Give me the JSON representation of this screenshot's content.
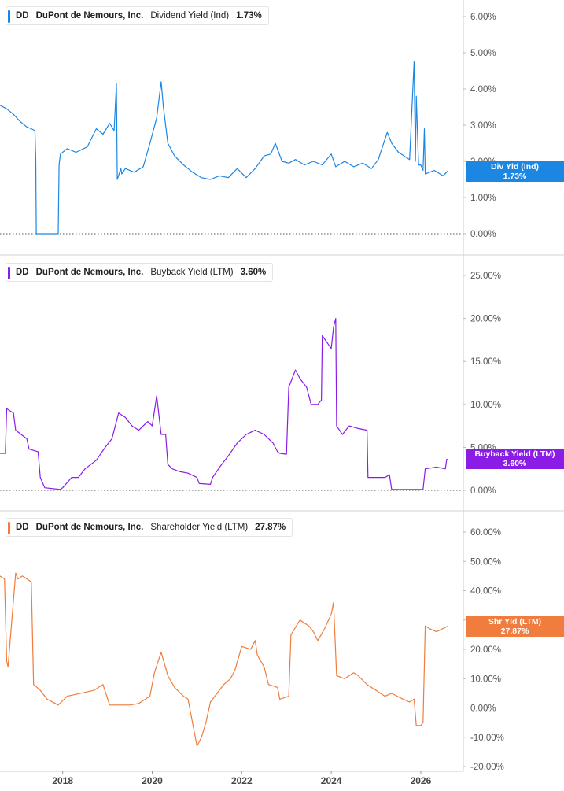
{
  "colors": {
    "dividend": "#1c86e3",
    "buyback": "#8a1ce6",
    "shareholder": "#f07c3d",
    "grid": "#dddddd",
    "axis_text": "#555555"
  },
  "x_axis": {
    "ticks": [
      "2018",
      "2020",
      "2022",
      "2024",
      "2026"
    ],
    "range": [
      2016.6,
      2026.95
    ]
  },
  "chart_data": [
    {
      "type": "line",
      "ticker": "DD",
      "company": "DuPont de Nemours, Inc.",
      "metric": "Dividend Yield (Ind)",
      "current": "1.73%",
      "tag_label": "Div Yld (Ind)",
      "tag_value": "1.73%",
      "yticks": [
        "0.00%",
        "1.00%",
        "2.00%",
        "3.00%",
        "4.00%",
        "5.00%",
        "6.00%"
      ],
      "ylim": [
        0,
        6
      ],
      "x": [
        2016.6,
        2016.75,
        2016.9,
        2017.05,
        2017.2,
        2017.3,
        2017.38,
        2017.4,
        2017.41,
        2017.9,
        2017.92,
        2017.95,
        2018.1,
        2018.3,
        2018.55,
        2018.75,
        2018.9,
        2019.05,
        2019.15,
        2019.2,
        2019.22,
        2019.3,
        2019.32,
        2019.4,
        2019.6,
        2019.8,
        2019.95,
        2020.1,
        2020.2,
        2020.25,
        2020.35,
        2020.5,
        2020.7,
        2020.9,
        2021.1,
        2021.3,
        2021.5,
        2021.7,
        2021.9,
        2022.1,
        2022.3,
        2022.5,
        2022.65,
        2022.75,
        2022.9,
        2023.05,
        2023.2,
        2023.4,
        2023.6,
        2023.8,
        2024.0,
        2024.1,
        2024.3,
        2024.5,
        2024.7,
        2024.9,
        2025.05,
        2025.25,
        2025.35,
        2025.5,
        2025.75,
        2025.85,
        2025.88,
        2025.9,
        2025.95,
        2026.0,
        2026.05,
        2026.08,
        2026.1,
        2026.3,
        2026.5,
        2026.6
      ],
      "values": [
        3.55,
        3.45,
        3.3,
        3.1,
        2.95,
        2.9,
        2.85,
        2.0,
        0.0,
        0.0,
        1.9,
        2.2,
        2.35,
        2.25,
        2.4,
        2.9,
        2.75,
        3.05,
        2.85,
        4.15,
        1.5,
        1.8,
        1.65,
        1.8,
        1.7,
        1.85,
        2.5,
        3.2,
        4.2,
        3.5,
        2.5,
        2.15,
        1.9,
        1.7,
        1.55,
        1.5,
        1.6,
        1.55,
        1.8,
        1.55,
        1.8,
        2.15,
        2.2,
        2.5,
        2.0,
        1.95,
        2.05,
        1.9,
        2.0,
        1.9,
        2.2,
        1.85,
        2.0,
        1.85,
        1.95,
        1.8,
        2.05,
        2.8,
        2.5,
        2.25,
        2.05,
        4.75,
        2.0,
        3.8,
        1.9,
        1.9,
        1.75,
        2.9,
        1.65,
        1.75,
        1.6,
        1.73
      ]
    },
    {
      "type": "line",
      "ticker": "DD",
      "company": "DuPont de Nemours, Inc.",
      "metric": "Buyback Yield (LTM)",
      "current": "3.60%",
      "tag_label": "Buyback Yield (LTM)",
      "tag_value": "3.60%",
      "yticks": [
        "0.00%",
        "5.00%",
        "10.00%",
        "15.00%",
        "20.00%",
        "25.00%"
      ],
      "ylim": [
        0,
        25
      ],
      "x": [
        2016.6,
        2016.72,
        2016.75,
        2016.9,
        2016.95,
        2017.2,
        2017.25,
        2017.45,
        2017.5,
        2017.6,
        2017.95,
        2018.0,
        2018.2,
        2018.35,
        2018.5,
        2018.75,
        2018.95,
        2019.1,
        2019.25,
        2019.4,
        2019.55,
        2019.7,
        2019.9,
        2020.0,
        2020.1,
        2020.2,
        2020.3,
        2020.35,
        2020.45,
        2020.6,
        2020.8,
        2021.0,
        2021.05,
        2021.3,
        2021.35,
        2021.55,
        2021.7,
        2021.9,
        2022.1,
        2022.3,
        2022.5,
        2022.7,
        2022.8,
        2022.85,
        2023.0,
        2023.05,
        2023.2,
        2023.3,
        2023.45,
        2023.55,
        2023.7,
        2023.78,
        2023.8,
        2024.0,
        2024.05,
        2024.1,
        2024.12,
        2024.25,
        2024.4,
        2024.6,
        2024.8,
        2024.82,
        2025.0,
        2025.2,
        2025.3,
        2025.35,
        2025.6,
        2025.8,
        2026.05,
        2026.1,
        2026.35,
        2026.55,
        2026.58,
        2026.6
      ],
      "values": [
        4.3,
        4.3,
        9.5,
        9.0,
        7.0,
        6.0,
        4.8,
        4.5,
        1.5,
        0.3,
        0.1,
        0.3,
        1.5,
        1.5,
        2.5,
        3.5,
        5.0,
        6.0,
        9.0,
        8.5,
        7.5,
        7.0,
        8.0,
        7.5,
        11.0,
        6.5,
        6.5,
        3.0,
        2.5,
        2.2,
        2.0,
        1.5,
        0.8,
        0.7,
        1.5,
        3.0,
        4.0,
        5.5,
        6.5,
        7.0,
        6.5,
        5.5,
        4.5,
        4.3,
        4.2,
        12.0,
        14.0,
        13.0,
        12.0,
        10.0,
        10.0,
        10.5,
        18.0,
        16.5,
        19.0,
        20.0,
        7.5,
        6.5,
        7.5,
        7.2,
        7.0,
        1.5,
        1.5,
        1.5,
        1.8,
        0.1,
        0.1,
        0.1,
        0.1,
        2.5,
        2.7,
        2.5,
        3.6,
        3.6
      ]
    },
    {
      "type": "line",
      "ticker": "DD",
      "company": "DuPont de Nemours, Inc.",
      "metric": "Shareholder Yield (LTM)",
      "current": "27.87%",
      "tag_label": "Shr Yld (LTM)",
      "tag_value": "27.87%",
      "yticks": [
        "-20.00%",
        "-10.00%",
        "0.00%",
        "10.00%",
        "20.00%",
        "30.00%",
        "40.00%",
        "50.00%",
        "60.00%"
      ],
      "ylim": [
        -20,
        60
      ],
      "x": [
        2016.6,
        2016.7,
        2016.75,
        2016.78,
        2016.95,
        2017.0,
        2017.1,
        2017.3,
        2017.35,
        2017.5,
        2017.55,
        2017.65,
        2017.9,
        2018.1,
        2018.4,
        2018.7,
        2018.9,
        2019.05,
        2019.5,
        2019.7,
        2019.95,
        2020.05,
        2020.2,
        2020.35,
        2020.5,
        2020.7,
        2020.8,
        2020.85,
        2021.0,
        2021.1,
        2021.2,
        2021.3,
        2021.45,
        2021.6,
        2021.75,
        2021.85,
        2022.0,
        2022.2,
        2022.3,
        2022.35,
        2022.5,
        2022.6,
        2022.8,
        2022.85,
        2023.05,
        2023.1,
        2023.3,
        2023.5,
        2023.6,
        2023.7,
        2023.85,
        2024.0,
        2024.05,
        2024.12,
        2024.3,
        2024.5,
        2024.6,
        2024.8,
        2025.0,
        2025.2,
        2025.35,
        2025.6,
        2025.75,
        2025.85,
        2025.9,
        2026.0,
        2026.05,
        2026.1,
        2026.2,
        2026.35,
        2026.6
      ],
      "values": [
        45,
        44,
        16,
        14,
        46,
        44,
        45,
        43,
        8,
        6,
        5,
        3,
        1,
        4,
        5,
        6,
        8,
        1,
        1,
        1.5,
        4,
        12,
        19,
        11,
        7,
        4,
        3,
        -1,
        -13,
        -10,
        -5,
        2,
        5,
        8,
        10,
        13,
        21,
        20,
        23,
        18,
        14,
        8,
        7,
        3,
        4,
        25,
        30,
        28,
        26,
        23,
        27,
        32,
        36,
        11,
        10,
        12,
        11,
        8,
        6,
        4,
        5,
        3,
        2,
        3,
        -6,
        -6,
        -5,
        28,
        27,
        26,
        27.87
      ]
    }
  ]
}
